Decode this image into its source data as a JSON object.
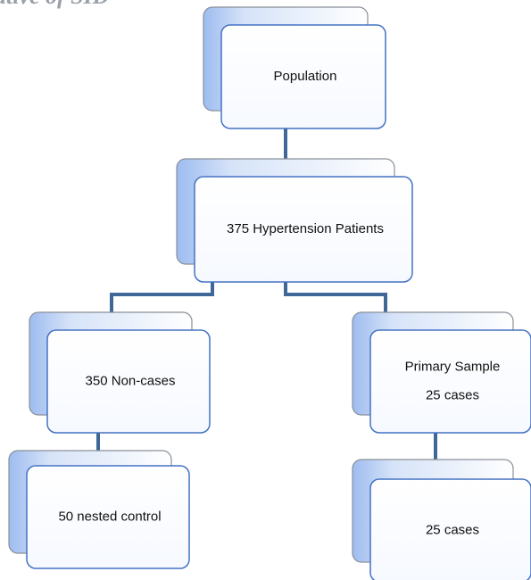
{
  "header": {
    "title": "ative of SID"
  },
  "nodes": [
    {
      "lines": [
        "Population"
      ]
    },
    {
      "lines": [
        "375 Hypertension Patients"
      ]
    },
    {
      "lines": [
        "350 Non-cases"
      ]
    },
    {
      "lines": [
        "Primary Sample",
        "25 cases"
      ]
    },
    {
      "lines": [
        "50 nested control"
      ]
    },
    {
      "lines": [
        "25 cases"
      ]
    }
  ]
}
